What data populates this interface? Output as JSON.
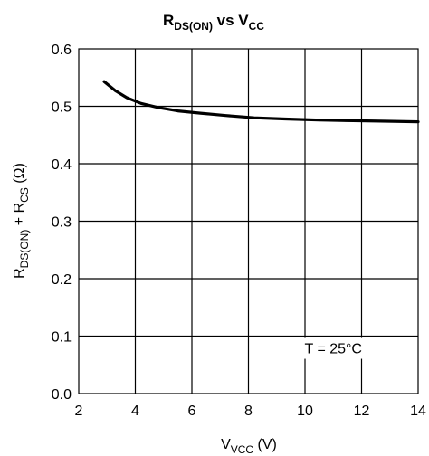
{
  "chart_data": {
    "type": "line",
    "title": {
      "main": "R",
      "main_sub": "DS(ON)",
      "middle": " vs V",
      "end_sub": "CC"
    },
    "xlabel": {
      "main": "V",
      "sub": "VCC",
      "unit": " (V)"
    },
    "ylabel": {
      "main1": "R",
      "sub1": "DS(ON)",
      "mid": " + R",
      "sub2": "CS",
      "unit": " (Ω)"
    },
    "xlim": [
      2,
      14
    ],
    "ylim": [
      0.0,
      0.6
    ],
    "x_ticks": [
      "2",
      "4",
      "6",
      "8",
      "10",
      "12",
      "14"
    ],
    "y_ticks": [
      "0.0",
      "0.1",
      "0.2",
      "0.3",
      "0.4",
      "0.5",
      "0.6"
    ],
    "grid": true,
    "annotation": "T = 25°C",
    "series": [
      {
        "x": [
          2.9,
          3.3,
          3.7,
          4.2,
          4.8,
          5.5,
          6.3,
          7.2,
          8.2,
          9.3,
          10.5,
          11.7,
          12.9,
          14.0
        ],
        "y": [
          0.543,
          0.527,
          0.515,
          0.505,
          0.498,
          0.492,
          0.488,
          0.484,
          0.48,
          0.478,
          0.476,
          0.475,
          0.474,
          0.473
        ]
      }
    ],
    "colors": {
      "line": "#000000",
      "grid": "#000000"
    }
  }
}
